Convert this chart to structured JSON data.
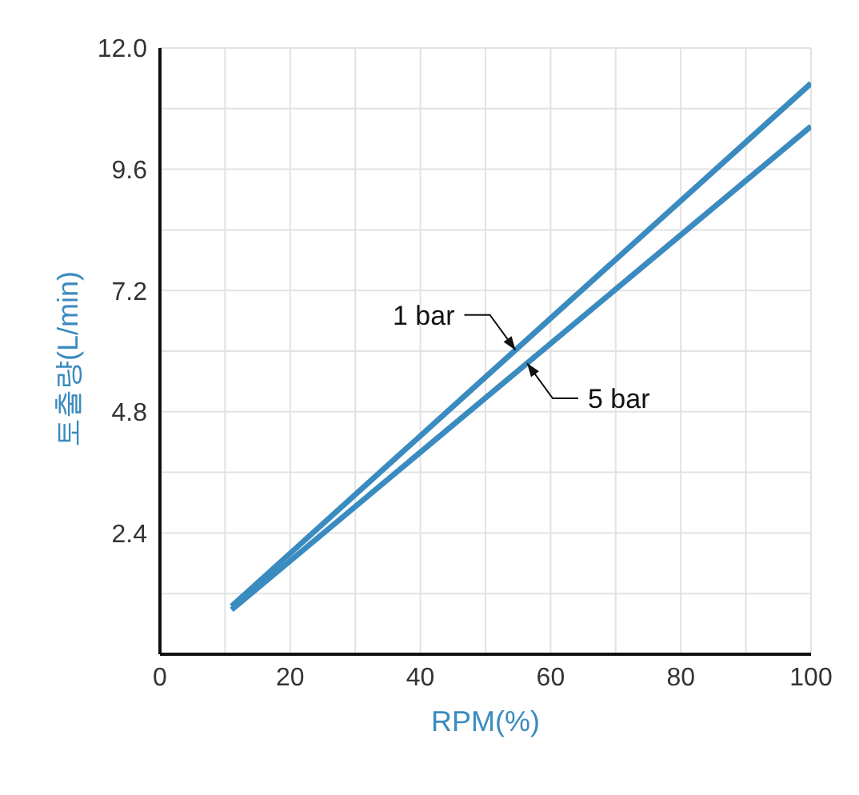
{
  "chart_data": {
    "type": "line",
    "xlabel": "RPM(%)",
    "ylabel": "토출량(L/min)",
    "x": [
      11,
      100
    ],
    "series": [
      {
        "name": "1 bar",
        "color": "#3a8bbf",
        "values": [
          0.95,
          11.3
        ]
      },
      {
        "name": "5 bar",
        "color": "#3a8bbf",
        "values": [
          0.88,
          10.45
        ]
      }
    ],
    "xlim": [
      0,
      100
    ],
    "xticks": [
      0,
      {
        "value": 10,
        "label": null
      },
      20,
      {
        "value": 30,
        "label": null
      },
      40,
      {
        "value": 50,
        "label": null
      },
      60,
      {
        "value": 70,
        "label": null
      },
      80,
      {
        "value": 90,
        "label": null
      },
      100
    ],
    "ylim": [
      0,
      12
    ],
    "yticks": [
      {
        "value": 0,
        "label": null
      },
      {
        "value": 1.2,
        "label": null
      },
      2.4,
      {
        "value": 3.6,
        "label": null
      },
      4.8,
      {
        "value": 6,
        "label": null
      },
      7.2,
      {
        "value": 8.4,
        "label": null
      },
      9.6,
      {
        "value": 10.8,
        "label": null
      },
      {
        "value": 12,
        "label": "12.0"
      }
    ],
    "grid": true,
    "legend": false,
    "marker": "none",
    "line_style": "solid"
  }
}
